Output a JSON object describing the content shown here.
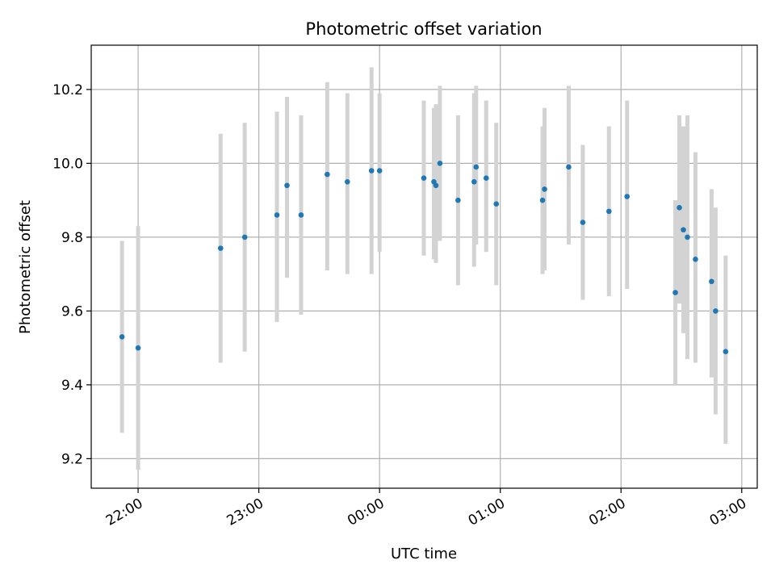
{
  "chart_data": {
    "type": "scatter",
    "title": "Photometric offset variation",
    "xlabel": "UTC time",
    "ylabel": "Photometric offset",
    "x_ticks": [
      "22:00",
      "23:00",
      "00:00",
      "01:00",
      "02:00",
      "03:00"
    ],
    "x_tick_minutes": [
      0,
      60,
      120,
      180,
      240,
      300
    ],
    "xlim_minutes_from_22_00": [
      -23.3,
      307.7
    ],
    "y_ticks": [
      9.2,
      9.4,
      9.6,
      9.8,
      10.0,
      10.2
    ],
    "ylim": [
      9.12,
      10.32
    ],
    "grid": true,
    "colors": {
      "point": "#1f77b4",
      "errorbar": "#d3d3d3",
      "grid": "#b0b0b0"
    },
    "points": [
      {
        "x": -8,
        "y": 9.53,
        "lo": 9.27,
        "hi": 9.79
      },
      {
        "x": 0,
        "y": 9.5,
        "lo": 9.17,
        "hi": 9.83
      },
      {
        "x": 41,
        "y": 9.77,
        "lo": 9.46,
        "hi": 10.08
      },
      {
        "x": 53,
        "y": 9.8,
        "lo": 9.49,
        "hi": 10.11
      },
      {
        "x": 69,
        "y": 9.86,
        "lo": 9.57,
        "hi": 10.14
      },
      {
        "x": 74,
        "y": 9.94,
        "lo": 9.69,
        "hi": 10.18
      },
      {
        "x": 81,
        "y": 9.86,
        "lo": 9.59,
        "hi": 10.13
      },
      {
        "x": 94,
        "y": 9.97,
        "lo": 9.71,
        "hi": 10.22
      },
      {
        "x": 104,
        "y": 9.95,
        "lo": 9.7,
        "hi": 10.19
      },
      {
        "x": 116,
        "y": 9.98,
        "lo": 9.7,
        "hi": 10.26
      },
      {
        "x": 120,
        "y": 9.98,
        "lo": 9.76,
        "hi": 10.19
      },
      {
        "x": 142,
        "y": 9.96,
        "lo": 9.75,
        "hi": 10.17
      },
      {
        "x": 147,
        "y": 9.95,
        "lo": 9.74,
        "hi": 10.15
      },
      {
        "x": 148,
        "y": 9.94,
        "lo": 9.73,
        "hi": 10.16
      },
      {
        "x": 150,
        "y": 10.0,
        "lo": 9.79,
        "hi": 10.21
      },
      {
        "x": 159,
        "y": 9.9,
        "lo": 9.67,
        "hi": 10.13
      },
      {
        "x": 167,
        "y": 9.95,
        "lo": 9.72,
        "hi": 10.19
      },
      {
        "x": 168,
        "y": 9.99,
        "lo": 9.78,
        "hi": 10.21
      },
      {
        "x": 173,
        "y": 9.96,
        "lo": 9.76,
        "hi": 10.17
      },
      {
        "x": 178,
        "y": 9.89,
        "lo": 9.67,
        "hi": 10.11
      },
      {
        "x": 201,
        "y": 9.9,
        "lo": 9.7,
        "hi": 10.1
      },
      {
        "x": 202,
        "y": 9.93,
        "lo": 9.71,
        "hi": 10.15
      },
      {
        "x": 214,
        "y": 9.99,
        "lo": 9.78,
        "hi": 10.21
      },
      {
        "x": 221,
        "y": 9.84,
        "lo": 9.63,
        "hi": 10.05
      },
      {
        "x": 234,
        "y": 9.87,
        "lo": 9.64,
        "hi": 10.1
      },
      {
        "x": 243,
        "y": 9.91,
        "lo": 9.66,
        "hi": 10.17
      },
      {
        "x": 267,
        "y": 9.65,
        "lo": 9.4,
        "hi": 9.9
      },
      {
        "x": 269,
        "y": 9.88,
        "lo": 9.62,
        "hi": 10.13
      },
      {
        "x": 271,
        "y": 9.82,
        "lo": 9.54,
        "hi": 10.1
      },
      {
        "x": 273,
        "y": 9.8,
        "lo": 9.47,
        "hi": 10.13
      },
      {
        "x": 277,
        "y": 9.74,
        "lo": 9.46,
        "hi": 10.03
      },
      {
        "x": 285,
        "y": 9.68,
        "lo": 9.42,
        "hi": 9.93
      },
      {
        "x": 287,
        "y": 9.6,
        "lo": 9.32,
        "hi": 9.88
      },
      {
        "x": 292,
        "y": 9.49,
        "lo": 9.24,
        "hi": 9.75
      }
    ]
  }
}
